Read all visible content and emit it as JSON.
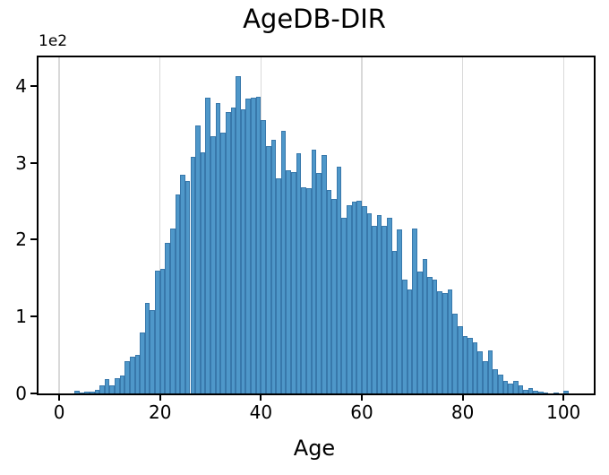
{
  "title": "AgeDB-DIR",
  "axes": {
    "xlabel": "Age",
    "offset_text": "1e2",
    "x_ticks": [
      0,
      20,
      40,
      60,
      80,
      100
    ],
    "y_ticks": [
      0,
      1,
      2,
      3,
      4
    ]
  },
  "colors": {
    "bar_face": "#4e97c9",
    "bar_edge": "#3878ab",
    "grid": "#d9d9d9",
    "spine": "#000000",
    "background": "#ffffff"
  },
  "chart_data": {
    "type": "bar",
    "subtype": "histogram",
    "title": "AgeDB-DIR",
    "xlabel": "Age",
    "ylabel": "",
    "y_scale_factor": "1e2",
    "bin_width": 1,
    "xlim": [
      -4.1,
      106
    ],
    "ylim": [
      0,
      437
    ],
    "grid": "vertical-only",
    "grid_x": [
      0,
      20,
      40,
      60,
      80,
      100
    ],
    "ages": [
      3,
      4,
      5,
      6,
      7,
      8,
      9,
      10,
      11,
      12,
      13,
      14,
      15,
      16,
      17,
      18,
      19,
      20,
      21,
      22,
      23,
      24,
      25,
      26,
      27,
      28,
      29,
      30,
      31,
      32,
      33,
      34,
      35,
      36,
      37,
      38,
      39,
      40,
      41,
      42,
      43,
      44,
      45,
      46,
      47,
      48,
      49,
      50,
      51,
      52,
      53,
      54,
      55,
      56,
      57,
      58,
      59,
      60,
      61,
      62,
      63,
      64,
      65,
      66,
      67,
      68,
      69,
      70,
      71,
      72,
      73,
      74,
      75,
      76,
      77,
      78,
      79,
      80,
      81,
      82,
      83,
      84,
      85,
      86,
      87,
      88,
      89,
      90,
      91,
      92,
      93,
      94,
      95,
      96,
      97,
      98,
      99,
      100
    ],
    "values": [
      4,
      1,
      2,
      2,
      5,
      11,
      19,
      11,
      20,
      23,
      42,
      48,
      50,
      79,
      118,
      108,
      160,
      162,
      196,
      215,
      259,
      284,
      276,
      308,
      349,
      313,
      384,
      335,
      378,
      339,
      366,
      372,
      413,
      370,
      383,
      385,
      386,
      355,
      322,
      330,
      280,
      341,
      290,
      288,
      312,
      268,
      267,
      317,
      287,
      310,
      265,
      253,
      295,
      228,
      245,
      249,
      250,
      243,
      234,
      218,
      232,
      218,
      229,
      185,
      213,
      148,
      135,
      215,
      158,
      175,
      152,
      148,
      133,
      130,
      135,
      104,
      88,
      75,
      72,
      66,
      55,
      42,
      56,
      32,
      24,
      16,
      13,
      16,
      10,
      5,
      7,
      4,
      2,
      1,
      0,
      1,
      0,
      4
    ]
  }
}
